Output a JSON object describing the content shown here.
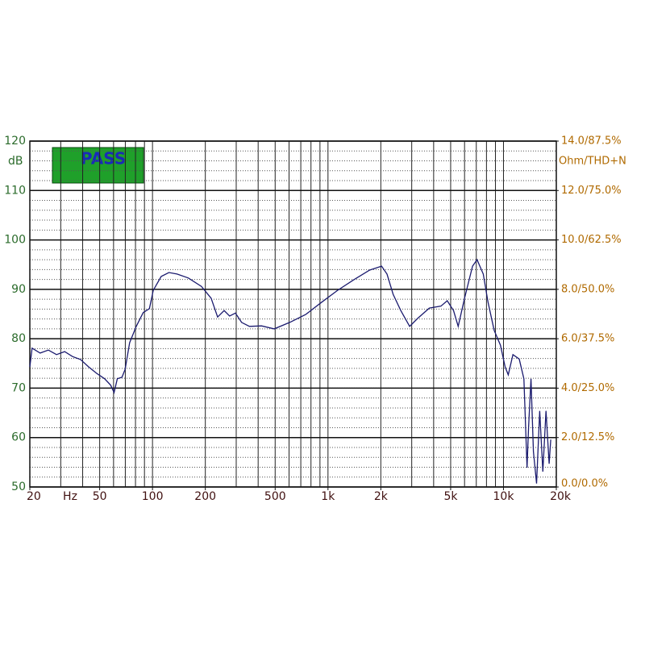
{
  "chart_data": {
    "type": "line",
    "annotation": "PASS",
    "y_label": "dB",
    "y2_label": "Ohm/THD+N",
    "x_label": "Hz",
    "x_log": true,
    "xlim": [
      20,
      20000
    ],
    "xticks": [
      20,
      50,
      100,
      200,
      500,
      {
        "value": 1000,
        "label": "1k"
      },
      {
        "value": 2000,
        "label": "2k"
      },
      {
        "value": 5000,
        "label": "5k"
      },
      {
        "value": 10000,
        "label": "10k"
      },
      {
        "value": 20000,
        "label": "20k"
      }
    ],
    "ylim": [
      50,
      120
    ],
    "yticks": [
      50,
      60,
      70,
      80,
      90,
      100,
      110,
      120
    ],
    "yminor_step": 2,
    "y2lim": [
      0,
      14
    ],
    "y2ticks": [
      {
        "value": 0,
        "label": "0.0/0.0%"
      },
      {
        "value": 2,
        "label": "2.0/12.5%"
      },
      {
        "value": 4,
        "label": "4.0/25.0%"
      },
      {
        "value": 6,
        "label": "6.0/37.5%"
      },
      {
        "value": 8,
        "label": "8.0/50.0%"
      },
      {
        "value": 10,
        "label": "10.0/62.5%"
      },
      {
        "value": 12,
        "label": "12.0/75.0%"
      },
      {
        "value": 14,
        "label": "14.0/87.5%"
      }
    ],
    "grid": true,
    "x": [
      20,
      20.6,
      22.9,
      25.5,
      28.4,
      31.6,
      35,
      38.9,
      43.3,
      48,
      53.4,
      57.8,
      60.4,
      63,
      67,
      69.8,
      74.1,
      80.8,
      88.5,
      96,
      101,
      112,
      124,
      138,
      160,
      190,
      216,
      235,
      256,
      275,
      297,
      322,
      357,
      418,
      494,
      605,
      746,
      921,
      1134,
      1399,
      1727,
      2020,
      2170,
      2350,
      2600,
      2920,
      3240,
      3780,
      4400,
      4780,
      5190,
      5520,
      6000,
      6660,
      7070,
      7670,
      8160,
      8850,
      9610,
      10220,
      10650,
      11320,
      12300,
      13070,
      13620,
      13900,
      14340,
      14810,
      15430,
      16080,
      16760,
      17460,
      18200,
      18600
    ],
    "series": [
      {
        "color": "#1a1a6e",
        "values": [
          74.3,
          78.1,
          77.1,
          77.7,
          76.8,
          77.4,
          76.4,
          75.8,
          74.3,
          73,
          71.9,
          70.6,
          69.1,
          71.9,
          72.2,
          73.8,
          79.2,
          82.5,
          85.3,
          86.1,
          89.8,
          92.6,
          93.4,
          93.1,
          92.3,
          90.6,
          88.2,
          84.4,
          85.7,
          84.6,
          85.2,
          83.3,
          82.5,
          82.6,
          82,
          83.3,
          84.9,
          87.4,
          89.8,
          91.9,
          93.9,
          94.7,
          93.1,
          89,
          85.7,
          82.5,
          84.1,
          86.2,
          86.6,
          87.7,
          85.7,
          82.5,
          88.2,
          94.7,
          96,
          93.1,
          87.4,
          81.7,
          78.7,
          74.3,
          72.7,
          76.8,
          75.9,
          71.9,
          53.9,
          62.1,
          71.9,
          57.2,
          50.7,
          65.4,
          53.1,
          65.4,
          54.7,
          59.6
        ]
      }
    ]
  }
}
